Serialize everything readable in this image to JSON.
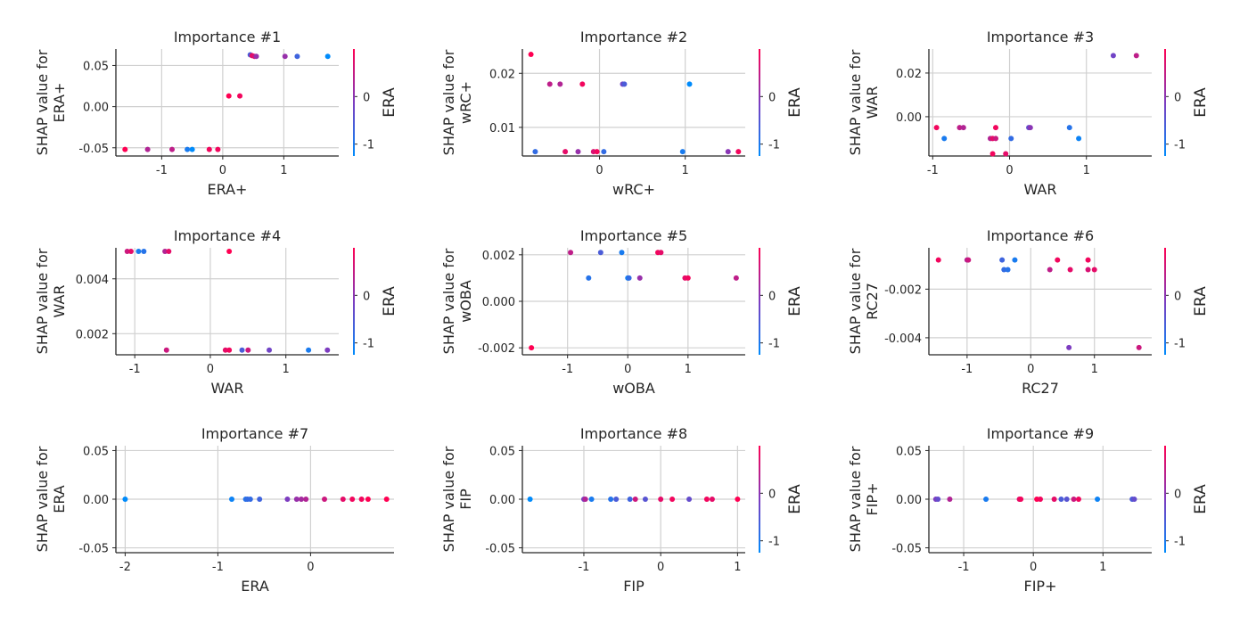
{
  "colors": {
    "low": "#008bfb",
    "mid": "#7d3cc0",
    "high": "#ff0052"
  },
  "chart_data": [
    {
      "type": "scatter",
      "title": "Importance #1",
      "xlabel": "ERA+",
      "ylabel": [
        "SHAP value for",
        "ERA+"
      ],
      "xlim": [
        -1.75,
        1.9
      ],
      "ylim": [
        -0.06,
        0.07
      ],
      "xticks": [
        -1,
        0,
        1
      ],
      "xtick_labels": [
        "-1",
        "0",
        "1"
      ],
      "yticks": [
        -0.05,
        0.0,
        0.05
      ],
      "ytick_labels": [
        "-0.05",
        "0.00",
        "0.05"
      ],
      "colorbar": {
        "label": "ERA",
        "ticks": [
          -1,
          0
        ],
        "tick_labels": [
          "-1",
          "0"
        ]
      },
      "points": [
        {
          "x": -1.6,
          "y": -0.052,
          "c": 1.0
        },
        {
          "x": -1.23,
          "y": -0.052,
          "c": 0.7
        },
        {
          "x": -0.83,
          "y": -0.052,
          "c": 0.75
        },
        {
          "x": -0.58,
          "y": -0.052,
          "c": 0.1
        },
        {
          "x": -0.5,
          "y": -0.052,
          "c": 0.0
        },
        {
          "x": -0.22,
          "y": -0.052,
          "c": 0.95
        },
        {
          "x": -0.08,
          "y": -0.052,
          "c": 0.95
        },
        {
          "x": 0.1,
          "y": 0.013,
          "c": 1.0
        },
        {
          "x": 0.28,
          "y": 0.013,
          "c": 0.95
        },
        {
          "x": 0.45,
          "y": 0.063,
          "c": 0.3
        },
        {
          "x": 0.48,
          "y": 0.062,
          "c": 0.9
        },
        {
          "x": 0.52,
          "y": 0.061,
          "c": 0.85
        },
        {
          "x": 0.55,
          "y": 0.061,
          "c": 0.6
        },
        {
          "x": 1.02,
          "y": 0.061,
          "c": 0.6
        },
        {
          "x": 1.22,
          "y": 0.061,
          "c": 0.25
        },
        {
          "x": 1.72,
          "y": 0.061,
          "c": 0.0
        }
      ]
    },
    {
      "type": "scatter",
      "title": "Importance #2",
      "xlabel": "wRC+",
      "ylabel": [
        "SHAP value for",
        "wRC+"
      ],
      "xlim": [
        -0.9,
        1.7
      ],
      "ylim": [
        0.0047,
        0.0245
      ],
      "xticks": [
        0,
        1
      ],
      "xtick_labels": [
        "0",
        "1"
      ],
      "yticks": [
        0.01,
        0.02
      ],
      "ytick_labels": [
        "0.01",
        "0.02"
      ],
      "colorbar": {
        "label": "ERA",
        "ticks": [
          -1,
          0
        ],
        "tick_labels": [
          "-1",
          "0"
        ]
      },
      "points": [
        {
          "x": -0.8,
          "y": 0.0235,
          "c": 1.0
        },
        {
          "x": -0.58,
          "y": 0.018,
          "c": 0.75
        },
        {
          "x": -0.46,
          "y": 0.018,
          "c": 0.7
        },
        {
          "x": -0.2,
          "y": 0.018,
          "c": 0.95
        },
        {
          "x": 0.27,
          "y": 0.018,
          "c": 0.45
        },
        {
          "x": 0.29,
          "y": 0.018,
          "c": 0.3
        },
        {
          "x": 1.05,
          "y": 0.018,
          "c": 0.0
        },
        {
          "x": -0.75,
          "y": 0.0055,
          "c": 0.2
        },
        {
          "x": -0.4,
          "y": 0.0055,
          "c": 0.9
        },
        {
          "x": -0.25,
          "y": 0.0055,
          "c": 0.6
        },
        {
          "x": -0.07,
          "y": 0.0055,
          "c": 0.85
        },
        {
          "x": -0.03,
          "y": 0.0055,
          "c": 0.95
        },
        {
          "x": 0.05,
          "y": 0.0055,
          "c": 0.2
        },
        {
          "x": 0.97,
          "y": 0.0055,
          "c": 0.1
        },
        {
          "x": 1.5,
          "y": 0.0055,
          "c": 0.55
        },
        {
          "x": 1.62,
          "y": 0.0055,
          "c": 0.95
        }
      ]
    },
    {
      "type": "scatter",
      "title": "Importance #3",
      "xlabel": "WAR",
      "ylabel": [
        "SHAP value for",
        "WAR"
      ],
      "xlim": [
        -1.05,
        1.85
      ],
      "ylim": [
        -0.018,
        0.031
      ],
      "xticks": [
        -1,
        0,
        1
      ],
      "xtick_labels": [
        "-1",
        "0",
        "1"
      ],
      "yticks": [
        0.0,
        0.02
      ],
      "ytick_labels": [
        "0.00",
        "0.02"
      ],
      "colorbar": {
        "label": "ERA",
        "ticks": [
          -1,
          0
        ],
        "tick_labels": [
          "-1",
          "0"
        ]
      },
      "points": [
        {
          "x": 1.35,
          "y": 0.028,
          "c": 0.45
        },
        {
          "x": 1.65,
          "y": 0.028,
          "c": 0.75
        },
        {
          "x": -0.95,
          "y": -0.005,
          "c": 0.95
        },
        {
          "x": -0.85,
          "y": -0.01,
          "c": 0.1
        },
        {
          "x": -0.65,
          "y": -0.005,
          "c": 0.75
        },
        {
          "x": -0.6,
          "y": -0.005,
          "c": 0.7
        },
        {
          "x": -0.25,
          "y": -0.01,
          "c": 0.7
        },
        {
          "x": -0.22,
          "y": -0.01,
          "c": 0.9
        },
        {
          "x": -0.18,
          "y": -0.005,
          "c": 0.95
        },
        {
          "x": -0.18,
          "y": -0.01,
          "c": 0.8
        },
        {
          "x": -0.05,
          "y": -0.017,
          "c": 0.9
        },
        {
          "x": 0.02,
          "y": -0.01,
          "c": 0.2
        },
        {
          "x": 0.25,
          "y": -0.005,
          "c": 0.4
        },
        {
          "x": 0.27,
          "y": -0.005,
          "c": 0.55
        },
        {
          "x": 0.78,
          "y": -0.005,
          "c": 0.15
        },
        {
          "x": 0.9,
          "y": -0.01,
          "c": 0.05
        },
        {
          "x": -0.22,
          "y": -0.017,
          "c": 0.95
        }
      ]
    },
    {
      "type": "scatter",
      "title": "Importance #4",
      "xlabel": "WAR",
      "ylabel": [
        "SHAP value for",
        "WAR"
      ],
      "xlim": [
        -1.25,
        1.7
      ],
      "ylim": [
        0.00123,
        0.00513
      ],
      "xticks": [
        -1,
        0,
        1
      ],
      "xtick_labels": [
        "-1",
        "0",
        "1"
      ],
      "yticks": [
        0.002,
        0.004
      ],
      "ytick_labels": [
        "0.002",
        "0.004"
      ],
      "colorbar": {
        "label": "ERA",
        "ticks": [
          -1,
          0
        ],
        "tick_labels": [
          "-1",
          "0"
        ]
      },
      "points": [
        {
          "x": -1.1,
          "y": 0.005,
          "c": 0.8
        },
        {
          "x": -1.05,
          "y": 0.005,
          "c": 0.9
        },
        {
          "x": -0.95,
          "y": 0.005,
          "c": 0.1
        },
        {
          "x": -0.88,
          "y": 0.005,
          "c": 0.15
        },
        {
          "x": -0.6,
          "y": 0.005,
          "c": 0.7
        },
        {
          "x": -0.55,
          "y": 0.005,
          "c": 0.9
        },
        {
          "x": 0.25,
          "y": 0.005,
          "c": 1.0
        },
        {
          "x": -0.58,
          "y": 0.0014,
          "c": 0.8
        },
        {
          "x": 0.2,
          "y": 0.0014,
          "c": 0.9
        },
        {
          "x": 0.25,
          "y": 0.0014,
          "c": 0.95
        },
        {
          "x": 0.42,
          "y": 0.0014,
          "c": 0.3
        },
        {
          "x": 0.5,
          "y": 0.0014,
          "c": 0.8
        },
        {
          "x": 0.78,
          "y": 0.0014,
          "c": 0.45
        },
        {
          "x": 1.3,
          "y": 0.0014,
          "c": 0.1
        },
        {
          "x": 1.55,
          "y": 0.0014,
          "c": 0.5
        }
      ]
    },
    {
      "type": "scatter",
      "title": "Importance #5",
      "xlabel": "wOBA",
      "ylabel": [
        "SHAP value for",
        "wOBA"
      ],
      "xlim": [
        -1.75,
        1.95
      ],
      "ylim": [
        -0.0023,
        0.0023
      ],
      "xticks": [
        -1,
        0,
        1
      ],
      "xtick_labels": [
        "-1",
        "0",
        "1"
      ],
      "yticks": [
        -0.002,
        0.0,
        0.002
      ],
      "ytick_labels": [
        "-0.002",
        "0.000",
        "0.002"
      ],
      "colorbar": {
        "label": "ERA",
        "ticks": [
          -1,
          0
        ],
        "tick_labels": [
          "-1",
          "0"
        ]
      },
      "points": [
        {
          "x": -1.6,
          "y": -0.002,
          "c": 1.0
        },
        {
          "x": -0.95,
          "y": 0.0021,
          "c": 0.75
        },
        {
          "x": -0.65,
          "y": 0.001,
          "c": 0.15
        },
        {
          "x": -0.45,
          "y": 0.0021,
          "c": 0.3
        },
        {
          "x": -0.1,
          "y": 0.0021,
          "c": 0.1
        },
        {
          "x": 0.0,
          "y": 0.001,
          "c": 0.05
        },
        {
          "x": 0.02,
          "y": 0.001,
          "c": 0.2
        },
        {
          "x": 0.2,
          "y": 0.001,
          "c": 0.6
        },
        {
          "x": 0.5,
          "y": 0.0021,
          "c": 0.95
        },
        {
          "x": 0.55,
          "y": 0.0021,
          "c": 0.9
        },
        {
          "x": 0.95,
          "y": 0.001,
          "c": 0.9
        },
        {
          "x": 1.0,
          "y": 0.001,
          "c": 0.95
        },
        {
          "x": 1.8,
          "y": 0.001,
          "c": 0.75
        }
      ]
    },
    {
      "type": "scatter",
      "title": "Importance #6",
      "xlabel": "RC27",
      "ylabel": [
        "SHAP value for",
        "RC27"
      ],
      "xlim": [
        -1.6,
        1.9
      ],
      "ylim": [
        -0.0047,
        -0.0003
      ],
      "xticks": [
        -1,
        0,
        1
      ],
      "xtick_labels": [
        "-1",
        "0",
        "1"
      ],
      "yticks": [
        -0.004,
        -0.002
      ],
      "ytick_labels": [
        "-0.004",
        "-0.002"
      ],
      "colorbar": {
        "label": "ERA",
        "ticks": [
          -1,
          0
        ],
        "tick_labels": [
          "-1",
          "0"
        ]
      },
      "points": [
        {
          "x": -1.45,
          "y": -0.0008,
          "c": 0.95
        },
        {
          "x": -1.0,
          "y": -0.0008,
          "c": 0.7
        },
        {
          "x": -0.98,
          "y": -0.0008,
          "c": 0.8
        },
        {
          "x": -0.45,
          "y": -0.0008,
          "c": 0.25
        },
        {
          "x": -0.42,
          "y": -0.0012,
          "c": 0.2
        },
        {
          "x": -0.36,
          "y": -0.0012,
          "c": 0.15
        },
        {
          "x": -0.25,
          "y": -0.0008,
          "c": 0.1
        },
        {
          "x": 0.3,
          "y": -0.0012,
          "c": 0.75
        },
        {
          "x": 0.42,
          "y": -0.0008,
          "c": 0.95
        },
        {
          "x": 0.62,
          "y": -0.0012,
          "c": 0.9
        },
        {
          "x": 0.9,
          "y": -0.0008,
          "c": 0.95
        },
        {
          "x": 0.9,
          "y": -0.0012,
          "c": 0.85
        },
        {
          "x": 1.0,
          "y": -0.0012,
          "c": 0.9
        },
        {
          "x": 0.6,
          "y": -0.0044,
          "c": 0.5
        },
        {
          "x": 1.7,
          "y": -0.0044,
          "c": 0.8
        }
      ]
    },
    {
      "type": "scatter",
      "title": "Importance #7",
      "xlabel": "ERA",
      "ylabel": [
        "SHAP value for",
        "ERA"
      ],
      "xlim": [
        -2.1,
        0.9
      ],
      "ylim": [
        -0.055,
        0.055
      ],
      "xticks": [
        -2,
        -1,
        0
      ],
      "xtick_labels": [
        "-2",
        "-1",
        "0"
      ],
      "yticks": [
        -0.05,
        0.0,
        0.05
      ],
      "ytick_labels": [
        "-0.05",
        "0.00",
        "0.05"
      ],
      "colorbar": null,
      "points": [
        {
          "x": -2.0,
          "y": 0.0,
          "c": 0.0
        },
        {
          "x": -0.85,
          "y": 0.0,
          "c": 0.05
        },
        {
          "x": -0.7,
          "y": 0.0,
          "c": 0.15
        },
        {
          "x": -0.68,
          "y": 0.0,
          "c": 0.2
        },
        {
          "x": -0.65,
          "y": 0.0,
          "c": 0.2
        },
        {
          "x": -0.55,
          "y": 0.0,
          "c": 0.25
        },
        {
          "x": -0.25,
          "y": 0.0,
          "c": 0.5
        },
        {
          "x": -0.15,
          "y": 0.0,
          "c": 0.6
        },
        {
          "x": -0.1,
          "y": 0.0,
          "c": 0.65
        },
        {
          "x": -0.05,
          "y": 0.0,
          "c": 0.7
        },
        {
          "x": 0.15,
          "y": 0.0,
          "c": 0.8
        },
        {
          "x": 0.35,
          "y": 0.0,
          "c": 0.9
        },
        {
          "x": 0.45,
          "y": 0.0,
          "c": 0.95
        },
        {
          "x": 0.55,
          "y": 0.0,
          "c": 0.95
        },
        {
          "x": 0.62,
          "y": 0.0,
          "c": 1.0
        },
        {
          "x": 0.82,
          "y": 0.0,
          "c": 1.0
        }
      ]
    },
    {
      "type": "scatter",
      "title": "Importance #8",
      "xlabel": "FIP",
      "ylabel": [
        "SHAP value for",
        "FIP"
      ],
      "xlim": [
        -1.8,
        1.1
      ],
      "ylim": [
        -0.055,
        0.055
      ],
      "xticks": [
        -1,
        0,
        1
      ],
      "xtick_labels": [
        "-1",
        "0",
        "1"
      ],
      "yticks": [
        -0.05,
        0.0,
        0.05
      ],
      "ytick_labels": [
        "-0.05",
        "0.00",
        "0.05"
      ],
      "colorbar": {
        "label": "ERA",
        "ticks": [
          -1,
          0
        ],
        "tick_labels": [
          "-1",
          "0"
        ]
      },
      "points": [
        {
          "x": -1.7,
          "y": 0.0,
          "c": 0.0
        },
        {
          "x": -1.0,
          "y": 0.0,
          "c": 0.5
        },
        {
          "x": -0.98,
          "y": 0.0,
          "c": 0.7
        },
        {
          "x": -0.9,
          "y": 0.0,
          "c": 0.1
        },
        {
          "x": -0.65,
          "y": 0.0,
          "c": 0.15
        },
        {
          "x": -0.58,
          "y": 0.0,
          "c": 0.3
        },
        {
          "x": -0.4,
          "y": 0.0,
          "c": 0.25
        },
        {
          "x": -0.33,
          "y": 0.0,
          "c": 0.8
        },
        {
          "x": -0.2,
          "y": 0.0,
          "c": 0.35
        },
        {
          "x": 0.0,
          "y": 0.0,
          "c": 0.9
        },
        {
          "x": 0.15,
          "y": 0.0,
          "c": 0.95
        },
        {
          "x": 0.37,
          "y": 0.0,
          "c": 0.4
        },
        {
          "x": 0.6,
          "y": 0.0,
          "c": 0.95
        },
        {
          "x": 0.67,
          "y": 0.0,
          "c": 0.9
        },
        {
          "x": 1.0,
          "y": 0.0,
          "c": 1.0
        }
      ]
    },
    {
      "type": "scatter",
      "title": "Importance #9",
      "xlabel": "FIP+",
      "ylabel": [
        "SHAP value for",
        "FIP+"
      ],
      "xlim": [
        -1.5,
        1.7
      ],
      "ylim": [
        -0.055,
        0.055
      ],
      "xticks": [
        -1,
        0,
        1
      ],
      "xtick_labels": [
        "-1",
        "0",
        "1"
      ],
      "yticks": [
        -0.05,
        0.0,
        0.05
      ],
      "ytick_labels": [
        "-0.05",
        "0.00",
        "0.05"
      ],
      "colorbar": {
        "label": "ERA",
        "ticks": [
          -1,
          0
        ],
        "tick_labels": [
          "-1",
          "0"
        ]
      },
      "points": [
        {
          "x": -1.4,
          "y": 0.0,
          "c": 0.5
        },
        {
          "x": -1.37,
          "y": 0.0,
          "c": 0.4
        },
        {
          "x": -1.2,
          "y": 0.0,
          "c": 0.7
        },
        {
          "x": -0.68,
          "y": 0.0,
          "c": 0.1
        },
        {
          "x": -0.2,
          "y": 0.0,
          "c": 0.9
        },
        {
          "x": -0.18,
          "y": 0.0,
          "c": 0.95
        },
        {
          "x": 0.05,
          "y": 0.0,
          "c": 1.0
        },
        {
          "x": 0.1,
          "y": 0.0,
          "c": 0.95
        },
        {
          "x": 0.3,
          "y": 0.0,
          "c": 0.9
        },
        {
          "x": 0.4,
          "y": 0.0,
          "c": 0.3
        },
        {
          "x": 0.48,
          "y": 0.0,
          "c": 0.35
        },
        {
          "x": 0.58,
          "y": 0.0,
          "c": 0.8
        },
        {
          "x": 0.65,
          "y": 0.0,
          "c": 0.95
        },
        {
          "x": 0.92,
          "y": 0.0,
          "c": 0.05
        },
        {
          "x": 1.42,
          "y": 0.0,
          "c": 0.3
        },
        {
          "x": 1.45,
          "y": 0.0,
          "c": 0.4
        }
      ]
    }
  ]
}
